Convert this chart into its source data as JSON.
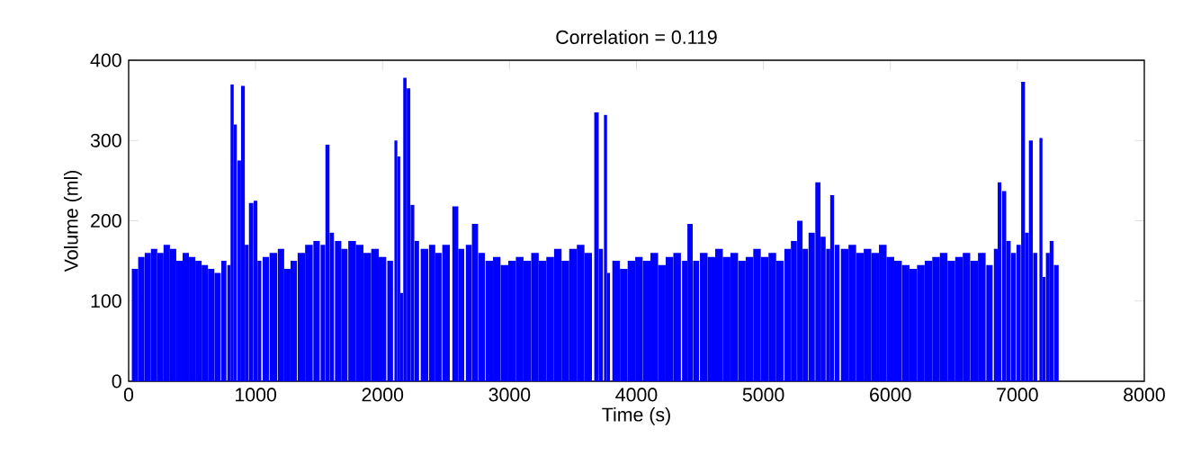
{
  "chart_data": {
    "type": "bar",
    "title": "Correlation = 0.119",
    "xlabel": "Time (s)",
    "ylabel": "Volume (ml)",
    "x": [
      50,
      100,
      150,
      200,
      250,
      300,
      350,
      400,
      450,
      500,
      550,
      600,
      650,
      700,
      750,
      790,
      815,
      840,
      870,
      900,
      930,
      965,
      1000,
      1030,
      1080,
      1140,
      1200,
      1250,
      1300,
      1360,
      1420,
      1480,
      1530,
      1566,
      1600,
      1650,
      1700,
      1760,
      1820,
      1880,
      1940,
      2000,
      2060,
      2105,
      2128,
      2150,
      2176,
      2205,
      2235,
      2270,
      2330,
      2390,
      2440,
      2500,
      2573,
      2620,
      2680,
      2728,
      2780,
      2840,
      2900,
      2960,
      3020,
      3080,
      3140,
      3200,
      3260,
      3320,
      3380,
      3440,
      3500,
      3560,
      3620,
      3685,
      3720,
      3756,
      3780,
      3840,
      3900,
      3960,
      4020,
      4080,
      4140,
      4200,
      4260,
      4320,
      4380,
      4422,
      4470,
      4530,
      4590,
      4650,
      4710,
      4770,
      4830,
      4890,
      4950,
      5010,
      5070,
      5130,
      5190,
      5240,
      5287,
      5330,
      5380,
      5429,
      5470,
      5510,
      5542,
      5580,
      5640,
      5700,
      5760,
      5820,
      5880,
      5940,
      6000,
      6060,
      6120,
      6180,
      6240,
      6300,
      6360,
      6420,
      6480,
      6540,
      6600,
      6660,
      6720,
      6780,
      6830,
      6860,
      6896,
      6930,
      6970,
      7010,
      7045,
      7075,
      7107,
      7140,
      7186,
      7210,
      7240,
      7270,
      7307
    ],
    "values": [
      140,
      155,
      160,
      165,
      160,
      170,
      165,
      150,
      160,
      155,
      150,
      145,
      140,
      135,
      150,
      145,
      370,
      320,
      275,
      368,
      170,
      222,
      225,
      150,
      155,
      160,
      165,
      140,
      150,
      160,
      170,
      175,
      170,
      295,
      185,
      175,
      165,
      175,
      170,
      160,
      165,
      155,
      150,
      300,
      280,
      110,
      378,
      365,
      220,
      175,
      165,
      170,
      160,
      170,
      218,
      165,
      170,
      196,
      160,
      150,
      155,
      145,
      150,
      155,
      150,
      160,
      150,
      155,
      165,
      150,
      165,
      170,
      160,
      335,
      165,
      332,
      135,
      150,
      140,
      150,
      155,
      150,
      160,
      145,
      155,
      160,
      150,
      196,
      150,
      160,
      155,
      165,
      155,
      160,
      150,
      155,
      165,
      155,
      160,
      150,
      165,
      175,
      200,
      165,
      185,
      248,
      180,
      165,
      232,
      170,
      165,
      170,
      160,
      165,
      160,
      170,
      155,
      150,
      145,
      140,
      145,
      150,
      155,
      160,
      150,
      155,
      160,
      150,
      160,
      145,
      165,
      248,
      237,
      175,
      160,
      170,
      373,
      185,
      300,
      160,
      303,
      130,
      160,
      175,
      145
    ],
    "color": "#0000ff",
    "xlim": [
      0,
      8000
    ],
    "ylim": [
      0,
      400
    ],
    "xticks": [
      0,
      1000,
      2000,
      3000,
      4000,
      5000,
      6000,
      7000,
      8000
    ],
    "yticks": [
      0,
      100,
      200,
      300,
      400
    ],
    "grid": false
  }
}
